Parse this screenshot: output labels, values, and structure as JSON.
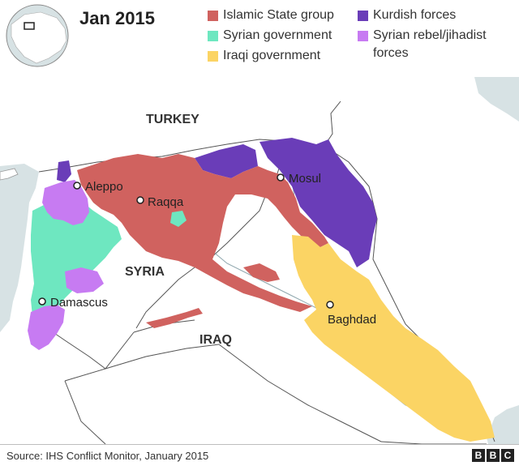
{
  "title": "Jan 2015",
  "legend": [
    {
      "label": "Islamic State group",
      "color": "#d0625f"
    },
    {
      "label": "Syrian government",
      "color": "#6ee7c0"
    },
    {
      "label": "Iraqi government",
      "color": "#fbd464"
    },
    {
      "label": "Kurdish forces",
      "color": "#6a3db8"
    },
    {
      "label": "Syrian rebel/jihadist",
      "label2": "forces",
      "color": "#c77bf2"
    }
  ],
  "countries": {
    "turkey": "TURKEY",
    "syria": "SYRIA",
    "iraq": "IRAQ"
  },
  "cities": {
    "aleppo": "Aleppo",
    "raqqa": "Raqqa",
    "mosul": "Mosul",
    "damascus": "Damascus",
    "baghdad": "Baghdad"
  },
  "colors": {
    "sea": "#d7e2e4",
    "land": "#ffffff",
    "border": "#555555",
    "river": "#8ea6ad"
  },
  "source": "Source: IHS Conflict Monitor, January 2015",
  "logo": [
    "B",
    "B",
    "C"
  ]
}
